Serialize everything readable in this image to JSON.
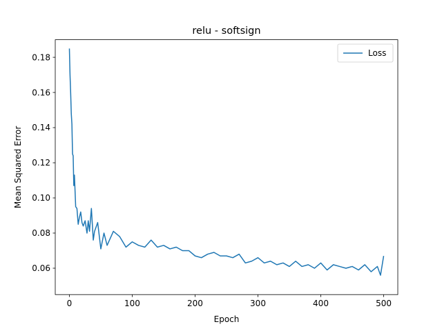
{
  "chart_data": {
    "type": "line",
    "title": "relu - softsign",
    "xlabel": "Epoch",
    "ylabel": "Mean Squared Error",
    "xlim": [
      -22.5,
      522.5
    ],
    "ylim": [
      0.045,
      0.19
    ],
    "xticks": [
      0,
      100,
      200,
      300,
      400,
      500
    ],
    "yticks": [
      0.06,
      0.08,
      0.1,
      0.12,
      0.14,
      0.16,
      0.18
    ],
    "ytick_labels": [
      "0.06",
      "0.08",
      "0.10",
      "0.12",
      "0.14",
      "0.16",
      "0.18"
    ],
    "grid": false,
    "legend_position": "top-right",
    "series": [
      {
        "name": "Loss",
        "color": "#1f77b4",
        "x": [
          0,
          1,
          2,
          3,
          4,
          5,
          6,
          7,
          8,
          9,
          10,
          12,
          14,
          16,
          18,
          20,
          22,
          25,
          28,
          30,
          32,
          35,
          38,
          40,
          45,
          50,
          55,
          60,
          70,
          80,
          90,
          100,
          110,
          120,
          130,
          140,
          150,
          160,
          170,
          180,
          190,
          200,
          210,
          220,
          230,
          240,
          250,
          260,
          270,
          280,
          290,
          300,
          310,
          320,
          330,
          340,
          350,
          360,
          370,
          380,
          390,
          400,
          410,
          420,
          430,
          440,
          450,
          460,
          470,
          480,
          490,
          495,
          500
        ],
        "values": [
          0.185,
          0.17,
          0.16,
          0.148,
          0.142,
          0.125,
          0.124,
          0.107,
          0.113,
          0.104,
          0.095,
          0.094,
          0.085,
          0.089,
          0.092,
          0.086,
          0.084,
          0.087,
          0.08,
          0.087,
          0.081,
          0.094,
          0.076,
          0.081,
          0.086,
          0.071,
          0.08,
          0.073,
          0.081,
          0.078,
          0.072,
          0.075,
          0.073,
          0.072,
          0.076,
          0.072,
          0.073,
          0.071,
          0.072,
          0.07,
          0.07,
          0.067,
          0.066,
          0.068,
          0.069,
          0.067,
          0.067,
          0.066,
          0.068,
          0.063,
          0.064,
          0.066,
          0.063,
          0.064,
          0.062,
          0.063,
          0.061,
          0.064,
          0.061,
          0.062,
          0.06,
          0.063,
          0.059,
          0.062,
          0.061,
          0.06,
          0.061,
          0.059,
          0.062,
          0.058,
          0.061,
          0.056,
          0.067
        ]
      }
    ]
  }
}
